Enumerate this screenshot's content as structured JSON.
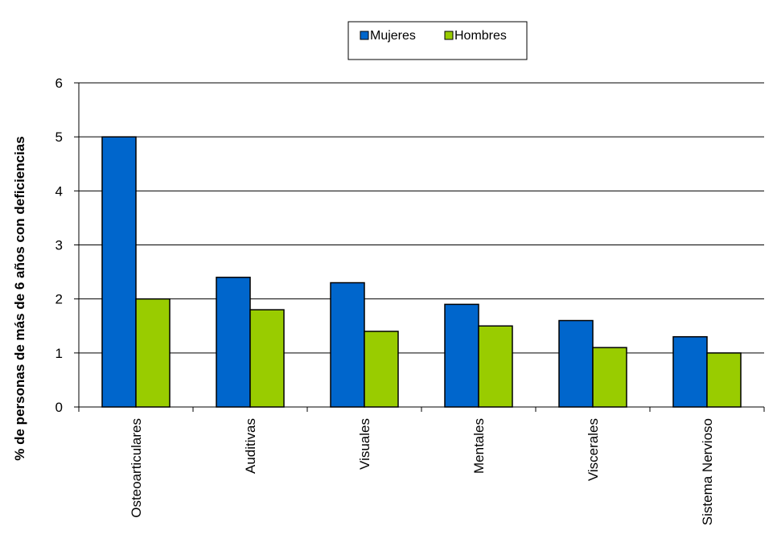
{
  "chart_data": {
    "type": "bar",
    "title": "",
    "xlabel": "",
    "ylabel": "% de personas de más de 6 años con deficiencias",
    "categories": [
      "Osteoarticulares",
      "Auditivas",
      "Visuales",
      "Mentales",
      "Viscerales",
      "Sistema Nervioso"
    ],
    "series": [
      {
        "name": "Mujeres",
        "color": "#0066CC",
        "values": [
          5.0,
          2.4,
          2.3,
          1.9,
          1.6,
          1.3
        ]
      },
      {
        "name": "Hombres",
        "color": "#99CC00",
        "values": [
          2.0,
          1.8,
          1.4,
          1.5,
          1.1,
          1.0
        ]
      }
    ],
    "ylim": [
      0,
      6
    ],
    "yticks": [
      "0",
      "1",
      "2",
      "3",
      "4",
      "5",
      "6"
    ],
    "grid": true,
    "legend_position": "top-center"
  }
}
